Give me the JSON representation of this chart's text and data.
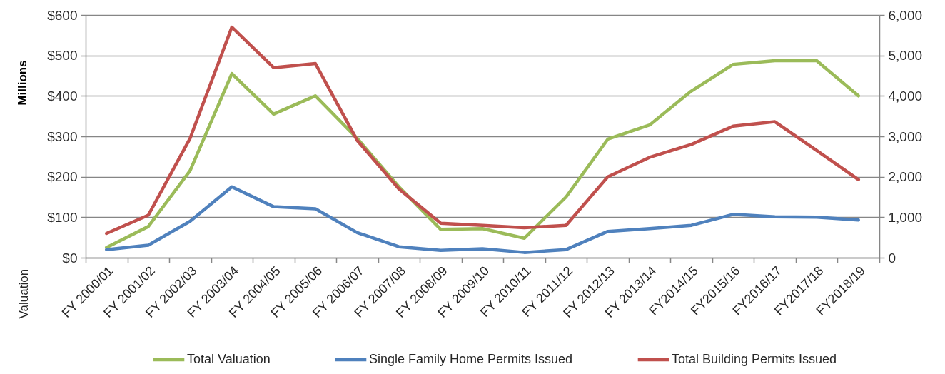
{
  "chart_data": {
    "type": "line",
    "categories": [
      "FY 2000/01",
      "FY 2001/02",
      "FY 2002/03",
      "FY 2003/04",
      "FY 2004/05",
      "FY 2005/06",
      "FY 2006/07",
      "FY 2007/08",
      "FY 2008/09",
      "FY 2009/10",
      "FY 2010/11",
      "FY 2011/12",
      "FY 2012/13",
      "FY 2013/14",
      "FY2014/15",
      "FY2015/16",
      "FY2016/17",
      "FY2017/18",
      "FY2018/19"
    ],
    "series": [
      {
        "name": "Total Valuation",
        "color": "#9bbb59",
        "values": [
          25,
          77,
          215,
          455,
          355,
          400,
          295,
          175,
          70,
          72,
          48,
          150,
          293,
          328,
          412,
          478,
          487,
          487,
          400
        ]
      },
      {
        "name": "Single Family Home Permits Issued",
        "color": "#4f81bd",
        "axis": "y2",
        "values": [
          200,
          310,
          900,
          1750,
          1260,
          1210,
          620,
          270,
          180,
          220,
          130,
          200,
          650,
          720,
          800,
          1070,
          1010,
          1000,
          930
        ]
      },
      {
        "name": "Total Building Permits Issued",
        "color": "#c0504d",
        "axis": "y2",
        "values": [
          600,
          1050,
          2950,
          5700,
          4700,
          4800,
          2900,
          1700,
          850,
          800,
          740,
          800,
          2000,
          2480,
          2800,
          3250,
          3360,
          2650,
          1930
        ]
      }
    ],
    "ylabel": "Valuation",
    "annotations": [
      "Millions"
    ],
    "ylim": [
      0,
      600
    ],
    "yticks": [
      {
        "value": 0,
        "label": "$0"
      },
      {
        "value": 100,
        "label": "$100"
      },
      {
        "value": 200,
        "label": "$200"
      },
      {
        "value": 300,
        "label": "$300"
      },
      {
        "value": 400,
        "label": "$400"
      },
      {
        "value": 500,
        "label": "$500"
      },
      {
        "value": 600,
        "label": "$600"
      }
    ],
    "y2lim": [
      0,
      6000
    ],
    "y2ticks": [
      0,
      {
        "value": 1000,
        "label": "1,000"
      },
      {
        "value": 2000,
        "label": "2,000"
      },
      {
        "value": 3000,
        "label": "3,000"
      },
      {
        "value": 4000,
        "label": "4,000"
      },
      {
        "value": 5000,
        "label": "5,000"
      },
      {
        "value": 6000,
        "label": "6,000"
      }
    ],
    "grid": "y",
    "legend": "bottom",
    "line_style": "solid"
  }
}
